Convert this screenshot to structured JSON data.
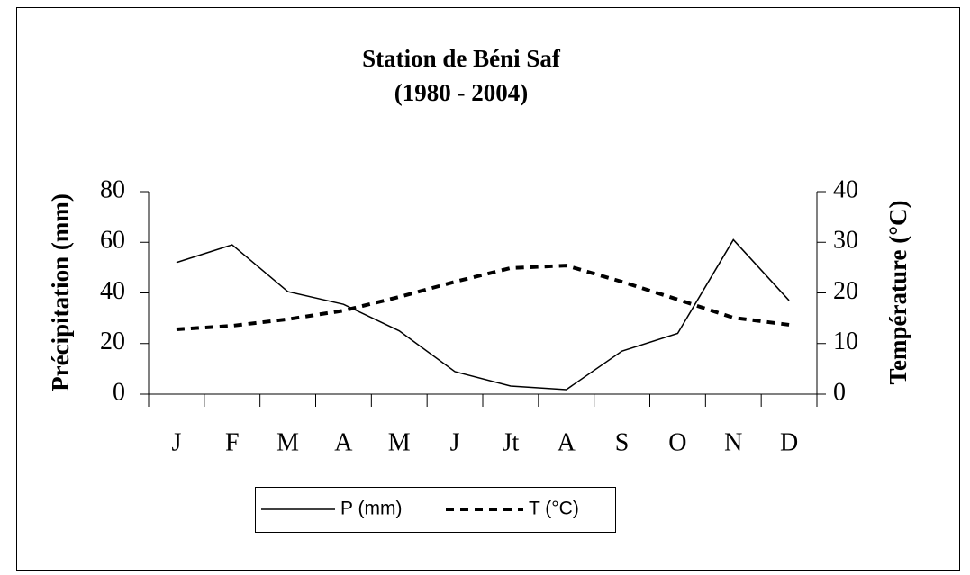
{
  "chart_data": {
    "type": "line",
    "title": "Station de Béni Saf",
    "subtitle": "(1980 - 2004)",
    "y_label": "Précipitation (mm)",
    "y2_label": "Température (°C)",
    "categories": [
      "J",
      "F",
      "M",
      "A",
      "M",
      "J",
      "Jt",
      "A",
      "S",
      "O",
      "N",
      "D"
    ],
    "series": [
      {
        "name": "P (mm)",
        "color": "#000000",
        "dash": "solid",
        "values": [
          52,
          59,
          40.5,
          35.5,
          25,
          8.9,
          3.2,
          1.8,
          17,
          24,
          61,
          37
        ]
      },
      {
        "name": "T (°C)",
        "color": "#000000",
        "dash": "dashed",
        "axis": "y2",
        "values": [
          12.8,
          13.5,
          14.8,
          16.5,
          19.2,
          22.2,
          24.9,
          25.4,
          22.2,
          18.7,
          15.1,
          13.7
        ]
      }
    ],
    "ylim": [
      0,
      80
    ],
    "yticks": [
      0,
      20,
      40,
      60,
      80
    ],
    "y2lim": [
      0,
      40
    ],
    "y2ticks": [
      0,
      10,
      20,
      30,
      40
    ],
    "grid": false,
    "legend": "bottom"
  }
}
